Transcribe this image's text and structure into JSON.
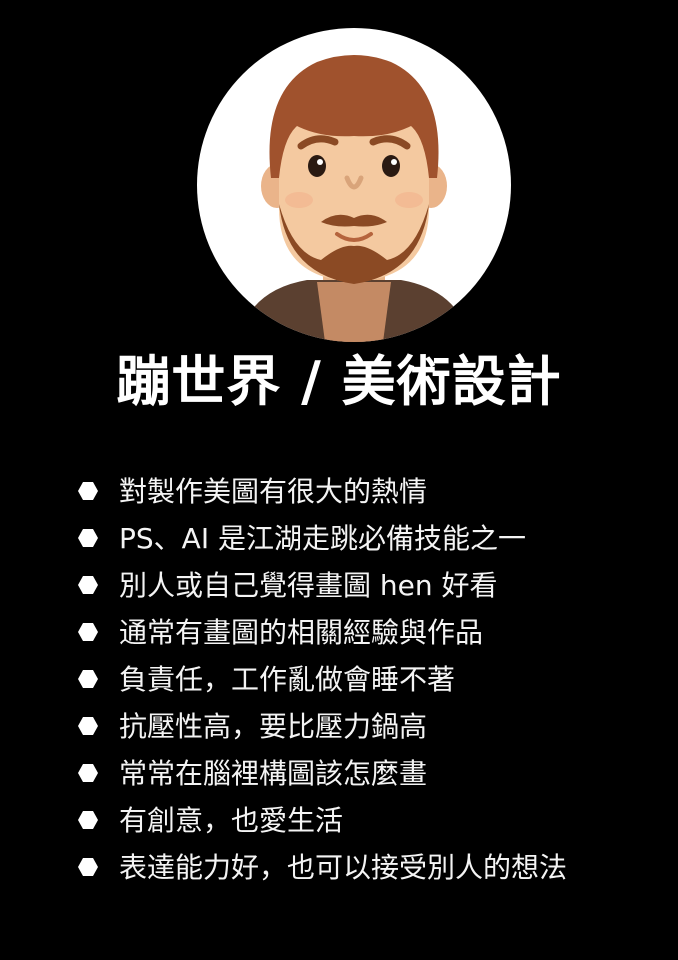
{
  "avatar": {
    "icon": "male-avatar-with-beard-icon",
    "colors": {
      "background": "#ffffff",
      "hair": "#a0522d",
      "skin": "#f4c9a0",
      "beard": "#8b4a24",
      "vest": "#5b4030",
      "shirt": "#c48a64"
    }
  },
  "title": "蹦世界 / 美術設計",
  "items": [
    "對製作美圖有很大的熱情",
    "PS、AI 是江湖走跳必備技能之一",
    "別人或自己覺得畫圖 hen 好看",
    "通常有畫圖的相關經驗與作品",
    "負責任，工作亂做會睡不著",
    "抗壓性高，要比壓力鍋高",
    "常常在腦裡構圖該怎麼畫",
    "有創意，也愛生活",
    "表達能力好，也可以接受別人的想法"
  ],
  "colors": {
    "page_background": "#000000",
    "text": "#ffffff"
  }
}
